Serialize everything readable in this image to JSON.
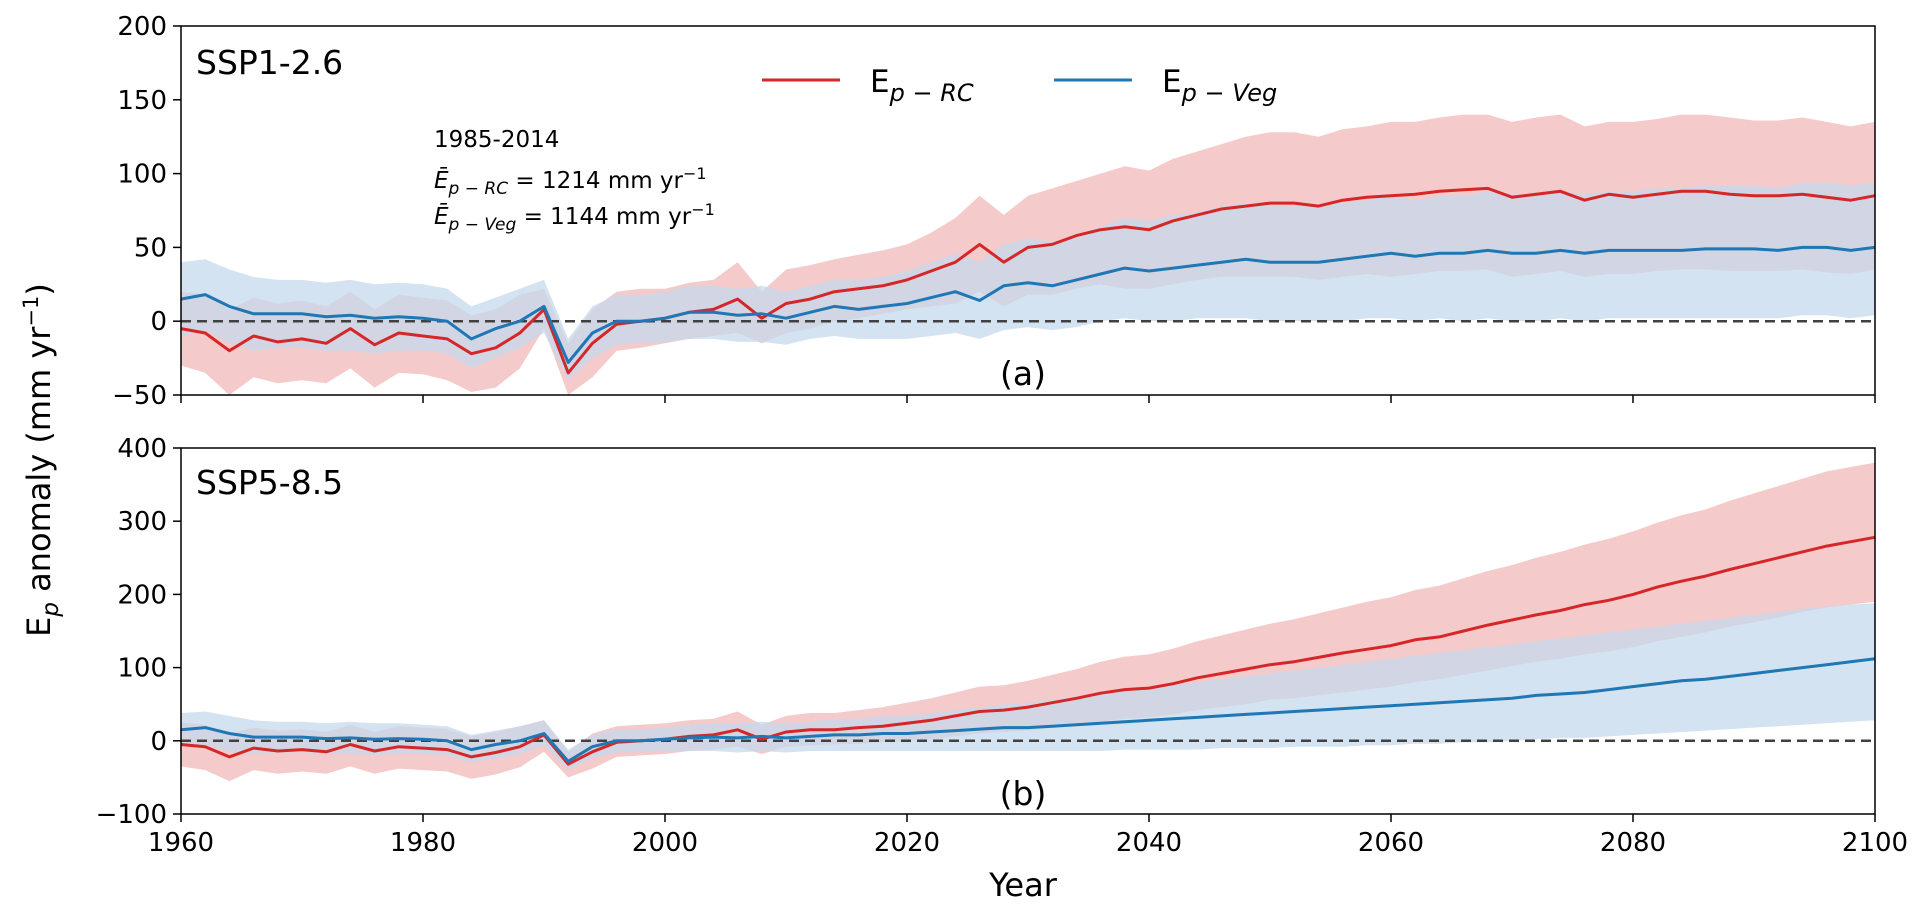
{
  "colors": {
    "rc": "#d62728",
    "veg": "#1f77b4",
    "rc_band": "#f4c4c5",
    "veg_band": "#c5d9ec",
    "zero_line": "#404040"
  },
  "figure": {
    "ylabel": "E",
    "ylabel_sub": "p",
    "ylabel_rest": " anomaly (mm yr",
    "ylabel_sup": "−1",
    "ylabel_close": ")",
    "xlabel": "Year",
    "x_ticks": [
      "1960",
      "1980",
      "2000",
      "2020",
      "2040",
      "2060",
      "2080",
      "2100"
    ]
  },
  "legend": {
    "rc_main": "E",
    "rc_sub": "p − RC",
    "veg_main": "E",
    "veg_sub": "p − Veg"
  },
  "annotation": {
    "period": "1985-2014",
    "rc_sym": "Ē",
    "rc_sub": "p − RC",
    "rc_value": " = 1214 mm yr",
    "rc_sup": "−1",
    "veg_sym": "Ē",
    "veg_sub": "p − Veg",
    "veg_value": " = 1144 mm yr",
    "veg_sup": "−1"
  },
  "chart_data": [
    {
      "type": "line",
      "panel_tag": "(a)",
      "title": "SSP1-2.6",
      "xlim": [
        1960,
        2100
      ],
      "ylim": [
        -50,
        200
      ],
      "y_ticks": [
        "200",
        "150",
        "100",
        "50",
        "0",
        "−50"
      ],
      "y_tick_values": [
        200,
        150,
        100,
        50,
        0,
        -50
      ],
      "reference_line": 0,
      "x_anchor_years": [
        1960,
        1962,
        1964,
        1966,
        1968,
        1970,
        1972,
        1974,
        1976,
        1978,
        1980,
        1982,
        1984,
        1986,
        1988,
        1990,
        1992,
        1994,
        1996,
        1998,
        2000,
        2002,
        2004,
        2006,
        2008,
        2010,
        2012,
        2014,
        2016,
        2018,
        2020,
        2022,
        2024,
        2026,
        2028,
        2030,
        2032,
        2034,
        2036,
        2038,
        2040,
        2042,
        2044,
        2046,
        2048,
        2050,
        2052,
        2054,
        2056,
        2058,
        2060,
        2062,
        2064,
        2066,
        2068,
        2070,
        2072,
        2074,
        2076,
        2078,
        2080,
        2082,
        2084,
        2086,
        2088,
        2090,
        2092,
        2094,
        2096,
        2098,
        2100
      ],
      "series": [
        {
          "name": "Ep-RC",
          "color": "#d62728",
          "values": [
            -5,
            -8,
            -20,
            -10,
            -14,
            -12,
            -15,
            -5,
            -16,
            -8,
            -10,
            -12,
            -22,
            -18,
            -8,
            8,
            -35,
            -15,
            -2,
            0,
            2,
            6,
            8,
            15,
            2,
            12,
            15,
            20,
            22,
            24,
            28,
            34,
            40,
            52,
            40,
            50,
            52,
            58,
            62,
            64,
            62,
            68,
            72,
            76,
            78,
            80,
            80,
            78,
            82,
            84,
            85,
            86,
            88,
            89,
            90,
            84,
            86,
            88,
            82,
            86,
            84,
            86,
            88,
            88,
            86,
            85,
            85,
            86,
            84,
            82,
            85
          ],
          "lower": [
            -30,
            -35,
            -50,
            -38,
            -42,
            -40,
            -42,
            -32,
            -45,
            -35,
            -36,
            -40,
            -48,
            -45,
            -32,
            -5,
            -50,
            -38,
            -20,
            -18,
            -15,
            -12,
            -10,
            -8,
            -15,
            -8,
            -5,
            0,
            2,
            5,
            8,
            10,
            12,
            20,
            10,
            18,
            18,
            22,
            25,
            22,
            22,
            25,
            28,
            30,
            30,
            30,
            30,
            28,
            30,
            32,
            30,
            32,
            34,
            34,
            35,
            30,
            32,
            34,
            30,
            32,
            32,
            34,
            35,
            35,
            34,
            34,
            34,
            35,
            33,
            32,
            35
          ],
          "upper": [
            20,
            18,
            8,
            16,
            12,
            14,
            10,
            20,
            8,
            18,
            16,
            14,
            4,
            8,
            18,
            22,
            -15,
            8,
            20,
            22,
            22,
            26,
            28,
            40,
            20,
            35,
            38,
            42,
            45,
            48,
            52,
            60,
            70,
            85,
            72,
            85,
            90,
            95,
            100,
            105,
            102,
            110,
            115,
            120,
            125,
            128,
            128,
            125,
            130,
            132,
            135,
            135,
            138,
            140,
            140,
            135,
            138,
            140,
            132,
            135,
            135,
            137,
            140,
            140,
            138,
            136,
            136,
            138,
            135,
            132,
            135
          ]
        },
        {
          "name": "Ep-Veg",
          "color": "#1f77b4",
          "values": [
            15,
            18,
            10,
            5,
            5,
            5,
            3,
            4,
            2,
            3,
            2,
            0,
            -12,
            -5,
            0,
            10,
            -28,
            -8,
            0,
            0,
            2,
            6,
            6,
            4,
            5,
            2,
            6,
            10,
            8,
            10,
            12,
            16,
            20,
            14,
            24,
            26,
            24,
            28,
            32,
            36,
            34,
            36,
            38,
            40,
            42,
            40,
            40,
            40,
            42,
            44,
            46,
            44,
            46,
            46,
            48,
            46,
            46,
            48,
            46,
            48,
            48,
            48,
            48,
            49,
            49,
            49,
            48,
            50,
            50,
            48,
            50
          ],
          "lower": [
            -10,
            -6,
            -15,
            -20,
            -18,
            -18,
            -20,
            -20,
            -22,
            -20,
            -20,
            -22,
            -32,
            -25,
            -18,
            -8,
            -40,
            -25,
            -16,
            -15,
            -14,
            -12,
            -12,
            -14,
            -14,
            -16,
            -12,
            -10,
            -12,
            -12,
            -12,
            -10,
            -8,
            -12,
            -6,
            -4,
            -6,
            -4,
            0,
            2,
            0,
            0,
            2,
            2,
            2,
            0,
            0,
            0,
            0,
            2,
            2,
            0,
            2,
            0,
            2,
            0,
            0,
            2,
            0,
            2,
            2,
            2,
            2,
            2,
            2,
            2,
            2,
            4,
            4,
            2,
            4
          ],
          "upper": [
            40,
            42,
            35,
            30,
            28,
            28,
            26,
            28,
            25,
            26,
            25,
            22,
            10,
            16,
            22,
            28,
            -12,
            10,
            18,
            18,
            20,
            24,
            24,
            22,
            24,
            20,
            24,
            28,
            28,
            30,
            34,
            40,
            46,
            40,
            52,
            56,
            54,
            58,
            64,
            70,
            68,
            72,
            74,
            78,
            80,
            78,
            78,
            78,
            80,
            82,
            85,
            82,
            85,
            85,
            88,
            86,
            86,
            88,
            86,
            88,
            88,
            90,
            90,
            92,
            92,
            92,
            90,
            94,
            94,
            92,
            94
          ]
        }
      ]
    },
    {
      "type": "line",
      "panel_tag": "(b)",
      "title": "SSP5-8.5",
      "xlim": [
        1960,
        2100
      ],
      "ylim": [
        -100,
        400
      ],
      "y_ticks": [
        "400",
        "300",
        "200",
        "100",
        "0",
        "−100"
      ],
      "y_tick_values": [
        400,
        300,
        200,
        100,
        0,
        -100
      ],
      "reference_line": 0,
      "x_anchor_years": [
        1960,
        1962,
        1964,
        1966,
        1968,
        1970,
        1972,
        1974,
        1976,
        1978,
        1980,
        1982,
        1984,
        1986,
        1988,
        1990,
        1992,
        1994,
        1996,
        1998,
        2000,
        2002,
        2004,
        2006,
        2008,
        2010,
        2012,
        2014,
        2016,
        2018,
        2020,
        2022,
        2024,
        2026,
        2028,
        2030,
        2032,
        2034,
        2036,
        2038,
        2040,
        2042,
        2044,
        2046,
        2048,
        2050,
        2052,
        2054,
        2056,
        2058,
        2060,
        2062,
        2064,
        2066,
        2068,
        2070,
        2072,
        2074,
        2076,
        2078,
        2080,
        2082,
        2084,
        2086,
        2088,
        2090,
        2092,
        2094,
        2096,
        2098,
        2100
      ],
      "series": [
        {
          "name": "Ep-RC",
          "color": "#d62728",
          "values": [
            -5,
            -8,
            -22,
            -10,
            -14,
            -12,
            -15,
            -5,
            -14,
            -8,
            -10,
            -12,
            -22,
            -16,
            -8,
            8,
            -32,
            -15,
            -2,
            0,
            2,
            6,
            8,
            15,
            2,
            12,
            15,
            15,
            18,
            20,
            24,
            28,
            34,
            40,
            42,
            46,
            52,
            58,
            65,
            70,
            72,
            78,
            86,
            92,
            98,
            104,
            108,
            114,
            120,
            125,
            130,
            138,
            142,
            150,
            158,
            165,
            172,
            178,
            186,
            192,
            200,
            210,
            218,
            225,
            234,
            242,
            250,
            258,
            266,
            272,
            278
          ],
          "lower": [
            -35,
            -40,
            -55,
            -40,
            -45,
            -42,
            -45,
            -35,
            -45,
            -38,
            -40,
            -42,
            -52,
            -46,
            -36,
            -15,
            -50,
            -38,
            -22,
            -20,
            -18,
            -14,
            -12,
            -8,
            -18,
            -8,
            -6,
            -5,
            -4,
            -2,
            0,
            2,
            6,
            10,
            12,
            14,
            18,
            22,
            26,
            30,
            32,
            36,
            42,
            46,
            50,
            56,
            58,
            62,
            66,
            70,
            74,
            80,
            84,
            90,
            96,
            102,
            108,
            112,
            118,
            122,
            128,
            136,
            142,
            148,
            156,
            162,
            168,
            176,
            182,
            186,
            190
          ],
          "upper": [
            25,
            22,
            10,
            18,
            14,
            16,
            12,
            22,
            12,
            20,
            18,
            16,
            6,
            12,
            20,
            28,
            -15,
            10,
            20,
            22,
            24,
            28,
            30,
            40,
            22,
            34,
            38,
            38,
            42,
            46,
            52,
            58,
            66,
            74,
            76,
            82,
            90,
            98,
            108,
            115,
            118,
            126,
            136,
            144,
            152,
            160,
            166,
            174,
            182,
            190,
            196,
            206,
            212,
            222,
            232,
            240,
            250,
            258,
            268,
            276,
            286,
            298,
            308,
            316,
            328,
            338,
            348,
            358,
            368,
            374,
            380
          ]
        },
        {
          "name": "Ep-Veg",
          "color": "#1f77b4",
          "values": [
            15,
            18,
            10,
            5,
            5,
            5,
            3,
            4,
            2,
            3,
            2,
            0,
            -12,
            -5,
            0,
            10,
            -28,
            -8,
            0,
            0,
            2,
            4,
            5,
            4,
            6,
            4,
            6,
            8,
            8,
            10,
            10,
            12,
            14,
            16,
            18,
            18,
            20,
            22,
            24,
            26,
            28,
            30,
            32,
            34,
            36,
            38,
            40,
            42,
            44,
            46,
            48,
            50,
            52,
            54,
            56,
            58,
            62,
            64,
            66,
            70,
            74,
            78,
            82,
            84,
            88,
            92,
            96,
            100,
            104,
            108,
            112
          ],
          "lower": [
            -8,
            -5,
            -15,
            -18,
            -16,
            -16,
            -18,
            -18,
            -20,
            -18,
            -18,
            -20,
            -30,
            -24,
            -18,
            -6,
            -40,
            -24,
            -16,
            -15,
            -14,
            -14,
            -14,
            -16,
            -14,
            -16,
            -14,
            -14,
            -14,
            -14,
            -14,
            -14,
            -14,
            -14,
            -14,
            -14,
            -14,
            -14,
            -14,
            -12,
            -12,
            -12,
            -12,
            -10,
            -10,
            -10,
            -8,
            -8,
            -8,
            -6,
            -6,
            -4,
            -4,
            -2,
            -2,
            0,
            2,
            4,
            4,
            6,
            8,
            10,
            12,
            14,
            16,
            18,
            20,
            22,
            24,
            26,
            28
          ],
          "upper": [
            38,
            40,
            34,
            28,
            26,
            26,
            24,
            26,
            24,
            24,
            22,
            20,
            8,
            14,
            20,
            28,
            -12,
            8,
            16,
            16,
            18,
            22,
            24,
            24,
            26,
            24,
            26,
            30,
            30,
            34,
            34,
            38,
            42,
            46,
            50,
            52,
            56,
            60,
            64,
            68,
            72,
            76,
            80,
            84,
            88,
            92,
            96,
            100,
            104,
            108,
            112,
            116,
            120,
            124,
            128,
            132,
            136,
            140,
            144,
            148,
            152,
            156,
            160,
            164,
            168,
            172,
            176,
            180,
            184,
            186,
            188
          ]
        }
      ]
    }
  ]
}
